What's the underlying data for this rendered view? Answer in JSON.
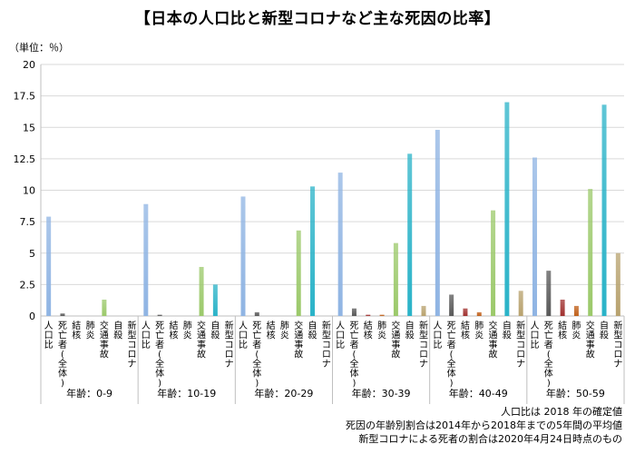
{
  "title": "【日本の人口比と新型コロナなど主な死因の比率】",
  "unit_label": "（単位：％）",
  "notes": [
    "人口比は 2018 年の確定値",
    "死因の年齢別割合は2014年から2018年までの5年間の平均値",
    "新型コロナによる死者の割合は2020年4月24日時点のもの"
  ],
  "chart_data": {
    "type": "bar",
    "title": "【日本の人口比と新型コロナなど主な死因の比率】",
    "ylabel": "（単位：％）",
    "ylim": [
      0,
      20
    ],
    "yticks": [
      "0",
      "2.5",
      "5",
      "7.5",
      "10",
      "12.5",
      "15",
      "17.5",
      "20"
    ],
    "grid": true,
    "legend": "none",
    "categories": [
      "人口比",
      "死亡者(全体)",
      "結核",
      "肺炎",
      "交通事故",
      "自殺",
      "新型コロナ"
    ],
    "category_colors": [
      "#8fb4e3",
      "#595959",
      "#a0302e",
      "#c0601a",
      "#9bc96a",
      "#2ab3c8",
      "#b8a26e"
    ],
    "groups": [
      {
        "name": "年齢：0-9",
        "values": [
          7.9,
          0.2,
          0.0,
          0.0,
          1.3,
          0.0,
          0.0
        ]
      },
      {
        "name": "年齢：10-19",
        "values": [
          8.9,
          0.1,
          0.0,
          0.0,
          3.9,
          2.5,
          0.0
        ]
      },
      {
        "name": "年齢：20-29",
        "values": [
          9.5,
          0.3,
          0.0,
          0.0,
          6.8,
          10.3,
          0.0
        ]
      },
      {
        "name": "年齢：30-39",
        "values": [
          11.4,
          0.6,
          0.1,
          0.1,
          5.8,
          12.9,
          0.8
        ]
      },
      {
        "name": "年齢：40-49",
        "values": [
          14.8,
          1.7,
          0.6,
          0.3,
          8.4,
          17.0,
          2.0
        ]
      },
      {
        "name": "年齢：50-59",
        "values": [
          12.6,
          3.6,
          1.3,
          0.8,
          10.1,
          16.8,
          5.0
        ]
      }
    ]
  }
}
